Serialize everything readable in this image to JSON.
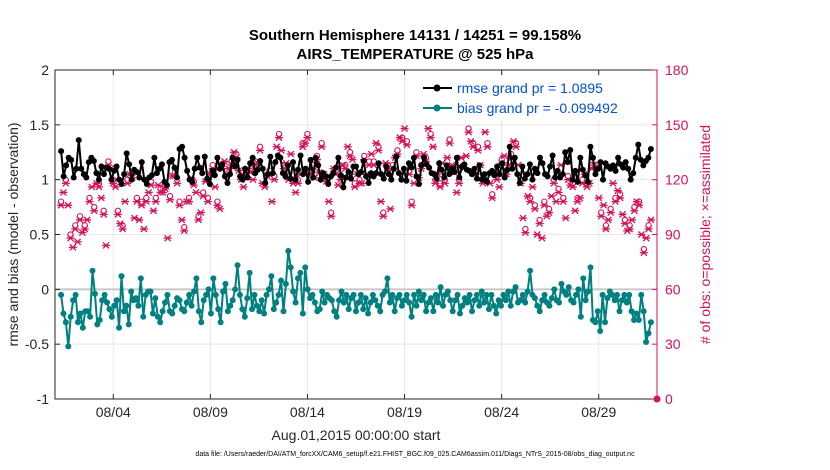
{
  "chart_data": {
    "type": "line",
    "title": "Southern Hemisphere 14131 / 14251 = 99.158%",
    "subtitle": "AIRS_TEMPERATURE @ 525 hPa",
    "xlabel": "Aug.01,2015 00:00:00 start",
    "ylabel": "rmse and bias (model - observation)",
    "y2label": "# of obs: o=possible; ×=assimilated",
    "footnote": "data file: /Users/raeder/DAI/ATM_forcXX/CAM6_setup/f.e21.FHIST_BGC.f09_025.CAM6assim.011/Diags_NTrS_2015-08/obs_diag_output.nc",
    "x_unit": "days since Aug.01,2015 00:00",
    "xlim": [
      0.5,
      31.5
    ],
    "ylim": [
      -1,
      2
    ],
    "y2lim": [
      0,
      180
    ],
    "xticks": [
      3.5,
      8.5,
      13.5,
      18.5,
      23.5,
      28.5
    ],
    "xtick_labels": [
      "08/04",
      "08/09",
      "08/14",
      "08/19",
      "08/24",
      "08/29"
    ],
    "yticks": [
      -1,
      -0.5,
      0,
      0.5,
      1,
      1.5,
      2
    ],
    "ytick_labels": [
      "-1",
      "-0.5",
      "0",
      "0.5",
      "1",
      "1.5",
      "2"
    ],
    "y2ticks": [
      0,
      30,
      60,
      90,
      120,
      150,
      180
    ],
    "y2tick_labels": [
      "0",
      "30",
      "60",
      "90",
      "120",
      "150",
      "180"
    ],
    "grid": true,
    "legend": "top-right",
    "colors": {
      "rmse": "#000000",
      "bias": "#008080",
      "obs": "#d6105b",
      "legend_text": "#0050d0",
      "zero_line": "#c8c8c8"
    },
    "series": [
      {
        "name": "rmse grand pr = 1.0895",
        "color": "#000000",
        "values": [
          1.26,
          1.03,
          1.13,
          1.2,
          1.18,
          1.02,
          1.1,
          1.36,
          1.1,
          1.05,
          1.02,
          1.16,
          1.2,
          1.17,
          1.06,
          1.0,
          1.12,
          1.05,
          1.11,
          1.1,
          1.0,
          1.08,
          1.12,
          1.0,
          0.96,
          1.05,
          1.24,
          1.14,
          1.0,
          1.09,
          1.07,
          1.02,
          1.16,
          1.0,
          0.96,
          1.02,
          1.04,
          1.2,
          1.06,
          1.1,
          1.14,
          0.98,
          0.95,
          1.16,
          1.18,
          1.11,
          1.02,
          1.28,
          1.3,
          1.2,
          1.08,
          1.0,
          0.98,
          1.1,
          1.2,
          1.11,
          1.06,
          1.21,
          1.01,
          0.96,
          1.08,
          1.04,
          1.2,
          1.1,
          1.14,
          1.03,
          0.97,
          1.05,
          1.2,
          1.12,
          1.18,
          1.03,
          1.0,
          1.1,
          1.02,
          1.15,
          1.2,
          1.06,
          1.09,
          1.17,
          1.1,
          0.97,
          1.05,
          1.21,
          1.06,
          1.16,
          1.22,
          1.2,
          1.06,
          1.03,
          1.13,
          1.01,
          1.16,
          1.0,
          1.09,
          1.22,
          1.05,
          1.1,
          0.98,
          1.18,
          1.02,
          1.2,
          1.13,
          1.0,
          1.06,
          1.03,
          0.96,
          1.03,
          1.06,
          1.11,
          1.2,
          1.04,
          0.93,
          1.02,
          1.07,
          1.01,
          1.12,
          1.12,
          1.05,
          1.07,
          1.17,
          1.03,
          0.97,
          1.06,
          1.03,
          1.06,
          1.15,
          1.05,
          1.01,
          1.12,
          1.05,
          1.0,
          1.1,
          1.21,
          1.06,
          1.0,
          1.1,
          0.99,
          1.15,
          1.11,
          1.2,
          1.03,
          0.96,
          1.13,
          1.2,
          1.14,
          1.11,
          1.06,
          1.05,
          1.01,
          1.15,
          1.09,
          1.02,
          1.13,
          1.05,
          1.1,
          1.07,
          1.2,
          1.02,
          1.12,
          1.14,
          1.09,
          1.08,
          1.05,
          1.1,
          1.01,
          1.13,
          1.0,
          1.05,
          0.98,
          1.06,
          1.08,
          1.04,
          1.12,
          1.05,
          1.15,
          1.02,
          1.09,
          1.3,
          1.1,
          1.2,
          1.05,
          0.97,
          1.12,
          1.01,
          1.05,
          1.14,
          1.0,
          1.1,
          1.06,
          1.2,
          1.15,
          1.05,
          1.03,
          1.12,
          1.22,
          1.02,
          1.08,
          1.02,
          1.05,
          1.25,
          1.16,
          1.27,
          1.0,
          1.08,
          0.98,
          1.2,
          1.09,
          1.04,
          0.98,
          1.3,
          1.2,
          1.05,
          1.1,
          1.16,
          1.0,
          1.15,
          1.12,
          1.1,
          1.13,
          1.08,
          1.2,
          1.14,
          1.11,
          1.16,
          1.1,
          1.0,
          1.06,
          1.2,
          1.32,
          1.18,
          1.13,
          1.17,
          1.2,
          1.28
        ]
      },
      {
        "name": "bias grand pr = -0.099492",
        "color": "#008080",
        "values": [
          -0.05,
          -0.22,
          -0.3,
          -0.52,
          -0.25,
          -0.1,
          -0.05,
          -0.3,
          -0.22,
          -0.35,
          -0.2,
          -0.2,
          -0.25,
          0.17,
          -0.04,
          -0.32,
          -0.28,
          -0.1,
          -0.05,
          -0.12,
          -0.18,
          -0.25,
          -0.15,
          -0.1,
          -0.35,
          0.12,
          -0.2,
          -0.15,
          -0.32,
          -0.02,
          -0.1,
          -0.08,
          -0.15,
          0.1,
          -0.25,
          -0.05,
          -0.02,
          -0.02,
          -0.22,
          -0.08,
          -0.25,
          -0.3,
          -0.2,
          -0.12,
          -0.05,
          -0.2,
          -0.22,
          -0.15,
          -0.08,
          -0.1,
          -0.18,
          -0.2,
          -0.12,
          -0.05,
          -0.15,
          -0.02,
          0.1,
          -0.2,
          -0.3,
          -0.1,
          -0.05,
          0.0,
          -0.22,
          0.1,
          -0.05,
          -0.18,
          -0.3,
          -0.02,
          0.05,
          -0.2,
          -0.15,
          -0.1,
          0.0,
          0.22,
          -0.05,
          -0.18,
          -0.25,
          -0.08,
          0.15,
          -0.18,
          -0.05,
          -0.15,
          -0.2,
          -0.1,
          -0.22,
          -0.05,
          0.0,
          0.12,
          -0.18,
          -0.12,
          -0.05,
          0.08,
          -0.2,
          0.05,
          0.35,
          0.2,
          -0.02,
          -0.12,
          0.1,
          0.15,
          -0.22,
          0.2,
          0.0,
          -0.08,
          -0.05,
          -0.12,
          -0.2,
          -0.18,
          -0.02,
          -0.12,
          -0.05,
          -0.08,
          -0.1,
          -0.2,
          -0.25,
          -0.1,
          -0.02,
          -0.12,
          -0.05,
          -0.18,
          -0.08,
          -0.05,
          -0.2,
          -0.12,
          -0.05,
          -0.18,
          -0.08,
          -0.22,
          -0.12,
          -0.05,
          -0.1,
          -0.15,
          -0.2,
          -0.05,
          -0.02,
          0.1,
          -0.12,
          -0.05,
          -0.2,
          -0.08,
          -0.05,
          -0.15,
          -0.1,
          -0.05,
          -0.12,
          -0.25,
          -0.05,
          -0.15,
          -0.02,
          -0.1,
          -0.05,
          -0.2,
          -0.12,
          -0.08,
          -0.2,
          -0.05,
          -0.12,
          0.02,
          -0.15,
          -0.05,
          -0.02,
          -0.1,
          -0.2,
          -0.1,
          -0.05,
          -0.22,
          -0.15,
          -0.08,
          -0.12,
          -0.05,
          -0.2,
          -0.1,
          -0.05,
          -0.15,
          -0.02,
          -0.12,
          -0.05,
          -0.18,
          -0.05,
          -0.15,
          -0.22,
          -0.1,
          -0.15,
          -0.05,
          -0.1,
          -0.02,
          -0.15,
          -0.02,
          0.02,
          -0.12,
          -0.1,
          -0.05,
          -0.12,
          -0.02,
          0.17,
          -0.05,
          -0.08,
          -0.15,
          -0.2,
          -0.1,
          -0.05,
          -0.12,
          -0.15,
          -0.08,
          0.0,
          -0.1,
          -0.12,
          0.05,
          -0.02,
          -0.05,
          0.02,
          -0.1,
          -0.12,
          -0.05,
          0.0,
          -0.25,
          0.1,
          -0.1,
          -0.02,
          0.2,
          -0.28,
          -0.3,
          -0.2,
          -0.38,
          -0.05,
          -0.3,
          -0.08,
          -0.02,
          -0.05,
          -0.1,
          -0.05,
          -0.2,
          -0.1,
          -0.05,
          -0.12,
          -0.05,
          -0.2,
          -0.28,
          -0.22,
          -0.28,
          -0.05,
          -0.2,
          -0.48,
          -0.4,
          -0.3
        ]
      },
      {
        "name": "obs_possible",
        "color": "#d6105b",
        "marker": "o",
        "values": [
          108,
          115,
          120,
          108,
          90,
          85,
          95,
          88,
          100,
          93,
          95,
          100,
          110,
          118,
          105,
          120,
          118,
          112,
          103,
          86,
          130,
          128,
          120,
          118,
          103,
          98,
          95,
          110,
          120,
          125,
          123,
          101,
          110,
          100,
          108,
          95,
          110,
          115,
          119,
          105,
          110,
          119,
          115,
          115,
          117,
          90,
          111,
          124,
          124,
          120,
          108,
          100,
          94,
          110,
          110,
          123,
          119,
          115,
          100,
          104,
          113,
          121,
          110,
          125,
          128,
          118,
          108,
          106,
          128,
          132,
          125,
          128,
          130,
          137,
          134,
          127,
          122,
          118,
          124,
          128,
          126,
          122,
          130,
          131,
          138,
          120,
          118,
          124,
          125,
          110,
          122,
          140,
          145,
          138,
          128,
          131,
          122,
          136,
          120,
          115,
          120,
          125,
          140,
          142,
          145,
          125,
          128,
          123,
          133,
          126,
          140,
          125,
          121,
          110,
          102,
          128,
          125,
          119,
          122,
          130,
          128,
          140,
          135,
          133,
          118,
          125,
          120,
          120,
          133,
          125,
          130,
          136,
          130,
          142,
          138,
          110,
          102,
          131,
          128,
          106,
          128,
          134,
          136,
          145,
          143,
          150,
          141,
          125,
          108,
          120,
          135,
          123,
          128,
          136,
          132,
          150,
          145,
          140,
          120,
          125,
          118,
          131,
          120,
          134,
          142,
          130,
          126,
          115,
          120,
          134,
          128,
          135,
          148,
          143,
          140,
          125,
          138,
          130,
          120,
          148,
          140,
          120,
          112,
          125,
          122,
          118,
          131,
          135,
          125,
          130,
          134,
          143,
          140,
          130,
          120,
          101,
          93,
          113,
          110,
          118,
          106,
          92,
          98,
          90,
          108,
          102,
          104,
          113,
          120,
          110,
          115,
          130,
          110,
          101,
          122,
          119,
          118,
          105,
          110,
          112,
          120,
          125,
          118,
          120,
          128,
          130,
          128,
          112,
          102,
          108,
          95,
          100,
          104,
          120,
          110,
          116,
          112,
          103,
          98,
          94,
          95,
          100,
          105,
          110,
          108,
          92,
          82,
          90,
          95,
          100
        ]
      },
      {
        "name": "obs_assimilated",
        "color": "#d6105b",
        "marker": "x",
        "values": [
          106,
          113,
          118,
          106,
          88,
          83,
          93,
          86,
          98,
          91,
          93,
          98,
          108,
          116,
          103,
          118,
          116,
          110,
          101,
          84,
          128,
          126,
          118,
          116,
          101,
          96,
          93,
          108,
          118,
          123,
          121,
          99,
          108,
          98,
          106,
          93,
          108,
          113,
          117,
          103,
          108,
          117,
          113,
          113,
          115,
          88,
          109,
          122,
          122,
          118,
          106,
          98,
          92,
          108,
          108,
          121,
          117,
          113,
          98,
          102,
          111,
          119,
          108,
          123,
          126,
          116,
          106,
          104,
          126,
          130,
          123,
          126,
          128,
          135,
          132,
          125,
          120,
          116,
          122,
          126,
          124,
          120,
          128,
          129,
          136,
          118,
          116,
          122,
          123,
          108,
          120,
          138,
          143,
          136,
          126,
          129,
          120,
          134,
          118,
          113,
          118,
          123,
          138,
          140,
          143,
          123,
          126,
          121,
          131,
          124,
          138,
          123,
          119,
          108,
          100,
          126,
          123,
          117,
          120,
          128,
          126,
          138,
          133,
          131,
          116,
          123,
          118,
          118,
          131,
          123,
          128,
          134,
          128,
          140,
          136,
          108,
          100,
          129,
          126,
          104,
          126,
          132,
          134,
          143,
          141,
          148,
          139,
          123,
          106,
          118,
          133,
          121,
          126,
          134,
          130,
          148,
          143,
          138,
          118,
          123,
          116,
          129,
          118,
          132,
          140,
          128,
          124,
          113,
          118,
          132,
          126,
          133,
          146,
          141,
          138,
          123,
          136,
          128,
          118,
          146,
          138,
          118,
          110,
          123,
          120,
          116,
          129,
          133,
          123,
          128,
          132,
          141,
          138,
          128,
          118,
          99,
          91,
          111,
          108,
          116,
          104,
          90,
          96,
          88,
          106,
          100,
          102,
          111,
          118,
          108,
          113,
          128,
          108,
          99,
          120,
          117,
          116,
          103,
          108,
          110,
          118,
          123,
          116,
          118,
          126,
          128,
          126,
          110,
          100,
          106,
          93,
          98,
          102,
          118,
          108,
          114,
          110,
          101,
          96,
          92,
          93,
          98,
          103,
          108,
          106,
          90,
          80,
          88,
          93,
          98
        ]
      }
    ]
  }
}
